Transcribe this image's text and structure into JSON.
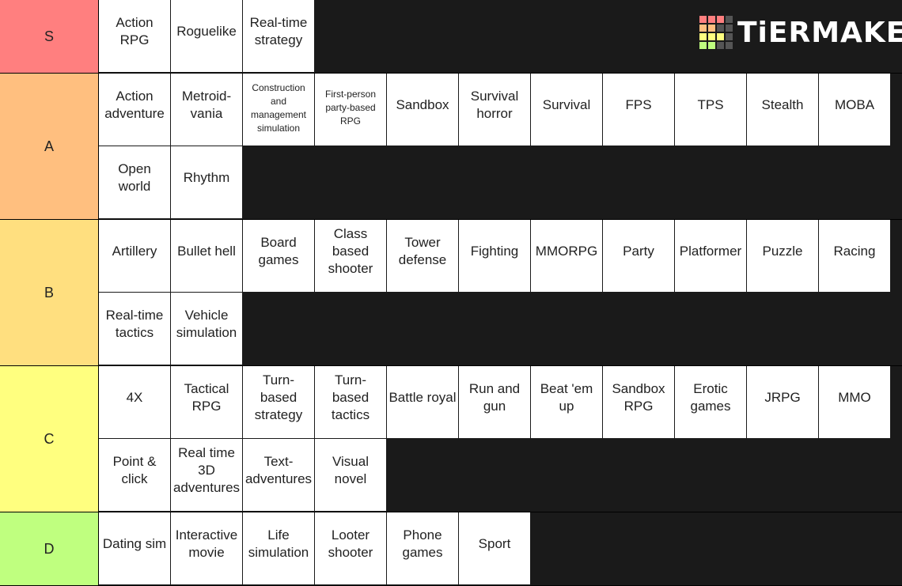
{
  "logo": "TiERMAKER",
  "tiers": [
    {
      "label": "S",
      "color": "#ff7f7f",
      "items": [
        "Action RPG",
        "Roguelike",
        "Real-time strategy"
      ]
    },
    {
      "label": "A",
      "color": "#ffbf7f",
      "items": [
        "Action adventure",
        "Metroid-vania",
        "Construction and management simulation",
        "First-person party-based RPG",
        "Sandbox",
        "Survival horror",
        "Survival",
        "FPS",
        "TPS",
        "Stealth",
        "MOBA",
        "Open world",
        "Rhythm"
      ]
    },
    {
      "label": "B",
      "color": "#ffdf7f",
      "items": [
        "Artillery",
        "Bullet hell",
        "Board games",
        "Class based shooter",
        "Tower defense",
        "Fighting",
        "MMORPG",
        "Party",
        "Platformer",
        "Puzzle",
        "Racing",
        "Real-time tactics",
        "Vehicle simulation"
      ]
    },
    {
      "label": "C",
      "color": "#ffff7f",
      "items": [
        "4X",
        "Tactical RPG",
        "Turn-based strategy",
        "Turn-based tactics",
        "Battle royal",
        "Run and gun",
        "Beat 'em up",
        "Sandbox RPG",
        "Erotic games",
        "JRPG",
        "MMO",
        "Point & click",
        "Real time 3D adventures",
        "Text-adventures",
        "Visual novel"
      ]
    },
    {
      "label": "D",
      "color": "#bfff7f",
      "items": [
        "Dating sim",
        "Interactive movie",
        "Life simulation",
        "Looter shooter",
        "Phone games",
        "Sport"
      ]
    }
  ]
}
